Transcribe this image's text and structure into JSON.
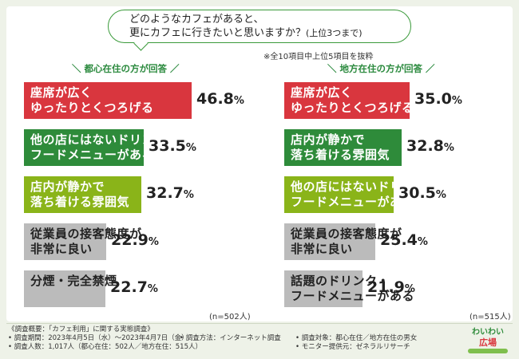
{
  "question": {
    "line1": "どのようなカフェがあると、",
    "line2": "更にカフェに行きたいと思いますか？",
    "sub": "(上位3つまで)"
  },
  "note": "※全10項目中上位5項目を抜粋",
  "chart_data": [
    {
      "type": "bar",
      "title": "＼ 都心在住の方が回答 ／",
      "n": "(n=502人)",
      "unit": "%",
      "xlim": [
        0,
        46.8
      ],
      "categories": [
        "座席が広く\nゆったりとくつろげる",
        "他の店にはないドリンク・\nフードメニューがある",
        "店内が静かで\n落ち着ける雰囲気",
        "従業員の接客態度が\n非常に良い",
        "分煙・完全禁煙"
      ],
      "values": [
        46.8,
        33.5,
        32.7,
        22.9,
        22.7
      ],
      "value_labels": [
        "46.8",
        "33.5",
        "32.7",
        "22.9",
        "22.7"
      ],
      "colors": [
        "#d9363e",
        "#2e8b3a",
        "#8ab419",
        "#bbbbbb",
        "#bbbbbb"
      ]
    },
    {
      "type": "bar",
      "title": "＼ 地方在住の方が回答 ／",
      "n": "(n=515人)",
      "unit": "%",
      "xlim": [
        0,
        46.8
      ],
      "categories": [
        "座席が広く\nゆったりとくつろげる",
        "店内が静かで\n落ち着ける雰囲気",
        "他の店にはないドリンク・\nフードメニューがある",
        "従業員の接客態度が\n非常に良い",
        "話題のドリンク・\nフードメニューがある"
      ],
      "values": [
        35.0,
        32.8,
        30.5,
        25.4,
        21.9
      ],
      "value_labels": [
        "35.0",
        "32.8",
        "30.5",
        "25.4",
        "21.9"
      ],
      "colors": [
        "#d9363e",
        "#2e8b3a",
        "#8ab419",
        "#bbbbbb",
        "#bbbbbb"
      ]
    }
  ],
  "footer": {
    "l1": "《調査概要：「カフェ利用」に関する実態調査》",
    "l2a": "• 調査期間：2023年4月5日（水）～2023年4月7日（金）",
    "l2b": "• 調査方法：インターネット調査",
    "l2c": "• 調査対象：都心在住／地方在住の男女",
    "l3a": "• 調査人数：1,017人（都心在住：502人／地方在住：515人）",
    "l3b": "• モニター提供元：ゼネラルリサーチ"
  },
  "logo": {
    "line1": "わいわい",
    "line2": "広場"
  }
}
